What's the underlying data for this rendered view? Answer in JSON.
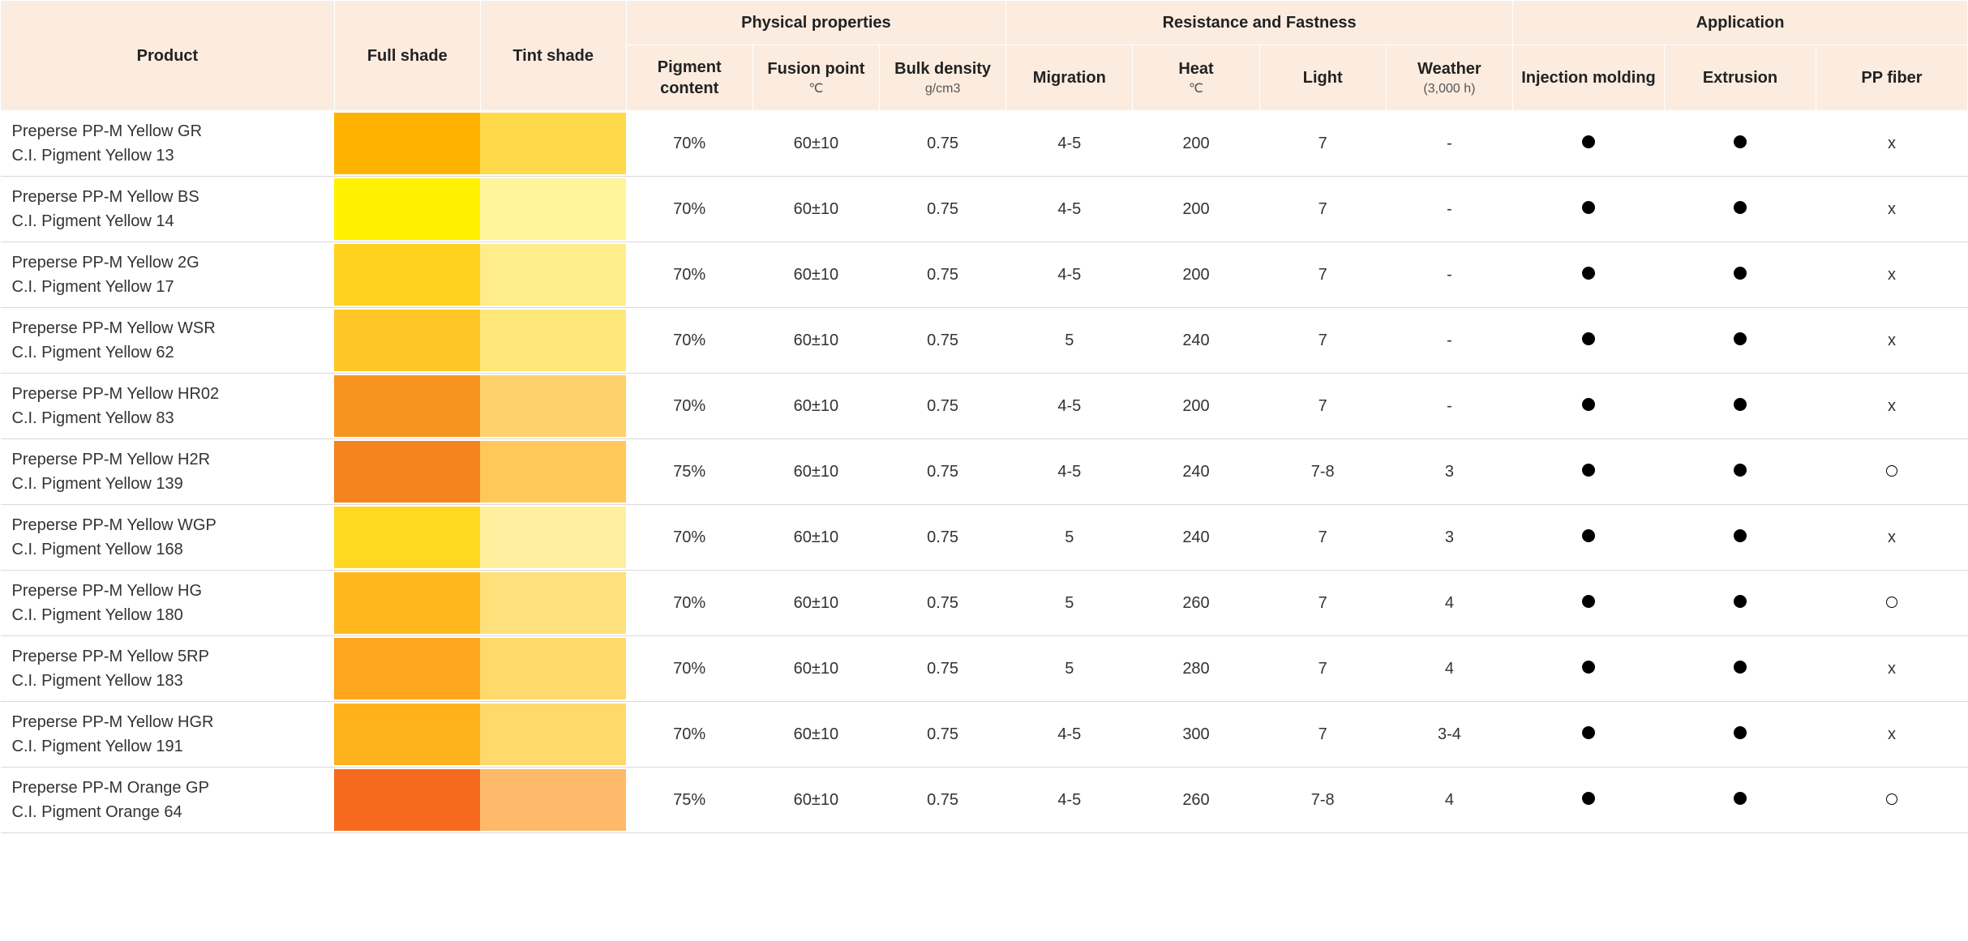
{
  "headers": {
    "product": "Product",
    "full_shade": "Full shade",
    "tint_shade": "Tint shade",
    "physical": "Physical properties",
    "resistance": "Resistance and Fastness",
    "application": "Application",
    "pigment_content": "Pigment content",
    "fusion_point": "Fusion point",
    "fusion_point_unit": "℃",
    "bulk_density": "Bulk density",
    "bulk_density_unit": "g/cm3",
    "migration": "Migration",
    "heat": "Heat",
    "heat_unit": "℃",
    "light": "Light",
    "weather": "Weather",
    "weather_sub": "(3,000 h)",
    "injection": "Injection molding",
    "extrusion": "Extrusion",
    "pp_fiber": "PP fiber"
  },
  "symbol_map": {
    "filled": "dot-filled",
    "open": "dot-open",
    "x": "text-x"
  },
  "rows": [
    {
      "name": "Preperse PP-M Yellow GR",
      "ci": "C.I. Pigment Yellow 13",
      "full_shade_color": "#ffb300",
      "tint_shade_color": "#ffd94a",
      "pigment_content": "70%",
      "fusion_point": "60±10",
      "bulk_density": "0.75",
      "migration": "4-5",
      "heat": "200",
      "light": "7",
      "weather": "-",
      "injection": "filled",
      "extrusion": "filled",
      "pp_fiber": "x"
    },
    {
      "name": "Preperse PP-M Yellow BS",
      "ci": "C.I. Pigment Yellow 14",
      "full_shade_color": "#fff100",
      "tint_shade_color": "#fff499",
      "pigment_content": "70%",
      "fusion_point": "60±10",
      "bulk_density": "0.75",
      "migration": "4-5",
      "heat": "200",
      "light": "7",
      "weather": "-",
      "injection": "filled",
      "extrusion": "filled",
      "pp_fiber": "x"
    },
    {
      "name": "Preperse PP-M Yellow 2G",
      "ci": "C.I. Pigment Yellow 17",
      "full_shade_color": "#ffd21f",
      "tint_shade_color": "#ffec8a",
      "pigment_content": "70%",
      "fusion_point": "60±10",
      "bulk_density": "0.75",
      "migration": "4-5",
      "heat": "200",
      "light": "7",
      "weather": "-",
      "injection": "filled",
      "extrusion": "filled",
      "pp_fiber": "x"
    },
    {
      "name": "Preperse PP-M Yellow WSR",
      "ci": "C.I. Pigment Yellow 62",
      "full_shade_color": "#ffc726",
      "tint_shade_color": "#ffe77a",
      "pigment_content": "70%",
      "fusion_point": "60±10",
      "bulk_density": "0.75",
      "migration": "5",
      "heat": "240",
      "light": "7",
      "weather": "-",
      "injection": "filled",
      "extrusion": "filled",
      "pp_fiber": "x"
    },
    {
      "name": "Preperse PP-M Yellow HR02",
      "ci": "C.I. Pigment Yellow 83",
      "full_shade_color": "#f79420",
      "tint_shade_color": "#ffd16b",
      "pigment_content": "70%",
      "fusion_point": "60±10",
      "bulk_density": "0.75",
      "migration": "4-5",
      "heat": "200",
      "light": "7",
      "weather": "-",
      "injection": "filled",
      "extrusion": "filled",
      "pp_fiber": "x"
    },
    {
      "name": "Preperse PP-M Yellow H2R",
      "ci": "C.I. Pigment Yellow 139",
      "full_shade_color": "#f5841f",
      "tint_shade_color": "#ffc859",
      "pigment_content": "75%",
      "fusion_point": "60±10",
      "bulk_density": "0.75",
      "migration": "4-5",
      "heat": "240",
      "light": "7-8",
      "weather": "3",
      "injection": "filled",
      "extrusion": "filled",
      "pp_fiber": "open"
    },
    {
      "name": "Preperse PP-M Yellow WGP",
      "ci": "C.I. Pigment Yellow 168",
      "full_shade_color": "#ffd820",
      "tint_shade_color": "#fff0a0",
      "pigment_content": "70%",
      "fusion_point": "60±10",
      "bulk_density": "0.75",
      "migration": "5",
      "heat": "240",
      "light": "7",
      "weather": "3",
      "injection": "filled",
      "extrusion": "filled",
      "pp_fiber": "x"
    },
    {
      "name": "Preperse PP-M Yellow HG",
      "ci": "C.I. Pigment Yellow 180",
      "full_shade_color": "#ffb81c",
      "tint_shade_color": "#ffe07a",
      "pigment_content": "70%",
      "fusion_point": "60±10",
      "bulk_density": "0.75",
      "migration": "5",
      "heat": "260",
      "light": "7",
      "weather": "4",
      "injection": "filled",
      "extrusion": "filled",
      "pp_fiber": "open"
    },
    {
      "name": "Preperse PP-M Yellow 5RP",
      "ci": "C.I. Pigment Yellow 183",
      "full_shade_color": "#ffa61e",
      "tint_shade_color": "#ffd96b",
      "pigment_content": "70%",
      "fusion_point": "60±10",
      "bulk_density": "0.75",
      "migration": "5",
      "heat": "280",
      "light": "7",
      "weather": "4",
      "injection": "filled",
      "extrusion": "filled",
      "pp_fiber": "x"
    },
    {
      "name": "Preperse PP-M Yellow HGR",
      "ci": "C.I. Pigment Yellow 191",
      "full_shade_color": "#ffb21c",
      "tint_shade_color": "#ffd96b",
      "pigment_content": "70%",
      "fusion_point": "60±10",
      "bulk_density": "0.75",
      "migration": "4-5",
      "heat": "300",
      "light": "7",
      "weather": "3-4",
      "injection": "filled",
      "extrusion": "filled",
      "pp_fiber": "x"
    },
    {
      "name": "Preperse PP-M Orange GP",
      "ci": "C.I. Pigment Orange 64",
      "full_shade_color": "#f56a1f",
      "tint_shade_color": "#ffb96b",
      "pigment_content": "75%",
      "fusion_point": "60±10",
      "bulk_density": "0.75",
      "migration": "4-5",
      "heat": "260",
      "light": "7-8",
      "weather": "4",
      "injection": "filled",
      "extrusion": "filled",
      "pp_fiber": "open"
    }
  ]
}
